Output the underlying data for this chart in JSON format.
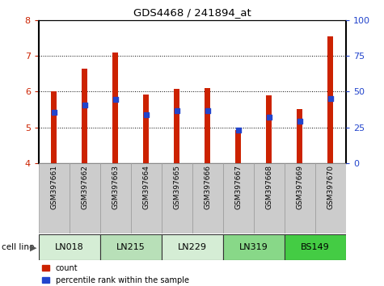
{
  "title": "GDS4468 / 241894_at",
  "samples": [
    "GSM397661",
    "GSM397662",
    "GSM397663",
    "GSM397664",
    "GSM397665",
    "GSM397666",
    "GSM397667",
    "GSM397668",
    "GSM397669",
    "GSM397670"
  ],
  "count_values": [
    6.0,
    6.65,
    7.1,
    5.92,
    6.08,
    6.1,
    4.93,
    5.9,
    5.5,
    7.55
  ],
  "percentile_values": [
    5.42,
    5.62,
    5.78,
    5.35,
    5.47,
    5.47,
    4.93,
    5.28,
    5.18,
    5.8
  ],
  "cell_line_groups": [
    {
      "name": "LN018",
      "start": 0,
      "end": 2,
      "color": "#d5edd5"
    },
    {
      "name": "LN215",
      "start": 2,
      "end": 4,
      "color": "#b8e0b8"
    },
    {
      "name": "LN229",
      "start": 4,
      "end": 6,
      "color": "#d5edd5"
    },
    {
      "name": "LN319",
      "start": 6,
      "end": 8,
      "color": "#88d888"
    },
    {
      "name": "BS149",
      "start": 8,
      "end": 10,
      "color": "#44cc44"
    }
  ],
  "ylim_left": [
    4,
    8
  ],
  "ylim_right": [
    0,
    100
  ],
  "yticks_left": [
    4,
    5,
    6,
    7,
    8
  ],
  "yticks_right": [
    0,
    25,
    50,
    75,
    100
  ],
  "bar_color": "#cc2200",
  "percentile_color": "#2244cc",
  "bar_width": 0.18,
  "tick_label_color_left": "#cc2200",
  "tick_label_color_right": "#2244cc",
  "grid_yticks": [
    5,
    6,
    7
  ]
}
